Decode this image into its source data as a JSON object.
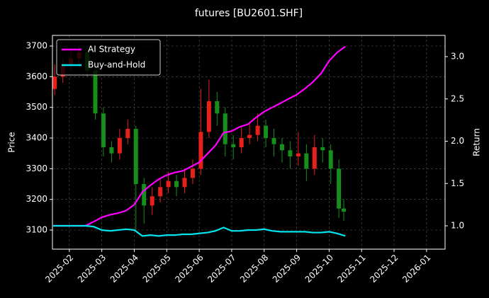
{
  "chart_data": {
    "type": "candlestick",
    "title": "futures [BU2601.SHF]",
    "ylabel": "Price",
    "y2label": "Return",
    "xlim": [
      1.48,
      13.57
    ],
    "xticks": [
      {
        "value": 2,
        "label": "2025-02"
      },
      {
        "value": 3,
        "label": "2025-03"
      },
      {
        "value": 4,
        "label": "2025-04"
      },
      {
        "value": 5,
        "label": "2025-05"
      },
      {
        "value": 6,
        "label": "2025-06"
      },
      {
        "value": 7,
        "label": "2025-07"
      },
      {
        "value": 8,
        "label": "2025-08"
      },
      {
        "value": 9,
        "label": "2025-09"
      },
      {
        "value": 10,
        "label": "2025-10"
      },
      {
        "value": 11,
        "label": "2025-11"
      },
      {
        "value": 12,
        "label": "2025-12"
      },
      {
        "value": 13,
        "label": "2026-01"
      }
    ],
    "ylim": [
      3037.7,
      3734.6
    ],
    "yticks": [
      3100,
      3200,
      3300,
      3400,
      3500,
      3600,
      3700
    ],
    "y2lim": [
      0.724,
      3.251
    ],
    "y2ticks": [
      {
        "value": 1,
        "label": "1.0"
      },
      {
        "value": 1.5,
        "label": "1.5"
      },
      {
        "value": 2,
        "label": "2.0"
      },
      {
        "value": 2.5,
        "label": "2.5"
      },
      {
        "value": 3,
        "label": "3.0"
      }
    ],
    "grid": true,
    "legend": "upper left",
    "up_color": "#e8201a",
    "down_color": "#16901a",
    "ohlc": {
      "x": [
        1.55,
        1.8,
        2.05,
        2.3,
        2.55,
        2.8,
        3.05,
        3.3,
        3.55,
        3.8,
        4.05,
        4.3,
        4.55,
        4.8,
        5.05,
        5.3,
        5.55,
        5.8,
        6.05,
        6.3,
        6.55,
        6.8,
        7.05,
        7.3,
        7.55,
        7.8,
        8.05,
        8.3,
        8.55,
        8.8,
        9.05,
        9.3,
        9.55,
        9.8,
        10.05,
        10.3,
        10.45
      ],
      "open": [
        3560,
        3600,
        3640,
        3660,
        3680,
        3620,
        3480,
        3370,
        3350,
        3400,
        3430,
        3250,
        3180,
        3210,
        3240,
        3260,
        3240,
        3270,
        3300,
        3420,
        3520,
        3480,
        3380,
        3370,
        3400,
        3410,
        3440,
        3400,
        3380,
        3360,
        3340,
        3350,
        3300,
        3370,
        3360,
        3300,
        3170
      ],
      "high": [
        3640,
        3660,
        3690,
        3700,
        3700,
        3640,
        3500,
        3390,
        3430,
        3460,
        3440,
        3270,
        3240,
        3270,
        3290,
        3280,
        3300,
        3330,
        3560,
        3590,
        3550,
        3500,
        3410,
        3440,
        3450,
        3480,
        3460,
        3430,
        3400,
        3390,
        3420,
        3380,
        3410,
        3400,
        3380,
        3330,
        3200
      ],
      "low": [
        3540,
        3580,
        3620,
        3640,
        3600,
        3460,
        3340,
        3320,
        3330,
        3380,
        3100,
        3120,
        3150,
        3190,
        3220,
        3210,
        3220,
        3250,
        3280,
        3400,
        3440,
        3340,
        3330,
        3350,
        3380,
        3390,
        3370,
        3340,
        3320,
        3300,
        3310,
        3260,
        3280,
        3320,
        3250,
        3140,
        3130
      ],
      "close": [
        3600,
        3640,
        3660,
        3680,
        3620,
        3480,
        3370,
        3350,
        3400,
        3430,
        3250,
        3180,
        3210,
        3240,
        3260,
        3240,
        3270,
        3300,
        3420,
        3520,
        3480,
        3380,
        3370,
        3400,
        3410,
        3440,
        3400,
        3380,
        3360,
        3340,
        3350,
        3300,
        3370,
        3360,
        3300,
        3170,
        3160
      ]
    },
    "x": [
      1.5,
      1.75,
      2,
      2.25,
      2.5,
      2.75,
      3,
      3.25,
      3.5,
      3.75,
      4,
      4.25,
      4.5,
      4.75,
      5,
      5.25,
      5.5,
      5.75,
      6,
      6.25,
      6.5,
      6.75,
      7,
      7.25,
      7.5,
      7.75,
      8,
      8.25,
      8.5,
      8.75,
      9,
      9.25,
      9.5,
      9.75,
      10,
      10.25,
      10.5
    ],
    "series": [
      {
        "name": "AI Strategy",
        "color": "#ff00ff",
        "axis": "y2",
        "values": [
          1,
          1,
          1,
          1,
          1,
          1.05,
          1.1,
          1.13,
          1.15,
          1.18,
          1.25,
          1.4,
          1.48,
          1.55,
          1.6,
          1.63,
          1.65,
          1.7,
          1.75,
          1.85,
          1.95,
          2.1,
          2.12,
          2.17,
          2.2,
          2.28,
          2.35,
          2.4,
          2.45,
          2.5,
          2.55,
          2.62,
          2.7,
          2.8,
          2.95,
          3.05,
          3.12
        ]
      },
      {
        "name": "Buy-and-Hold",
        "color": "#00e5ee",
        "axis": "y2",
        "values": [
          1,
          1,
          1,
          1,
          1,
          0.99,
          0.95,
          0.94,
          0.95,
          0.96,
          0.95,
          0.88,
          0.89,
          0.88,
          0.89,
          0.89,
          0.9,
          0.9,
          0.91,
          0.92,
          0.94,
          0.98,
          0.94,
          0.94,
          0.95,
          0.95,
          0.96,
          0.94,
          0.93,
          0.93,
          0.93,
          0.93,
          0.92,
          0.92,
          0.93,
          0.91,
          0.88
        ]
      }
    ]
  }
}
